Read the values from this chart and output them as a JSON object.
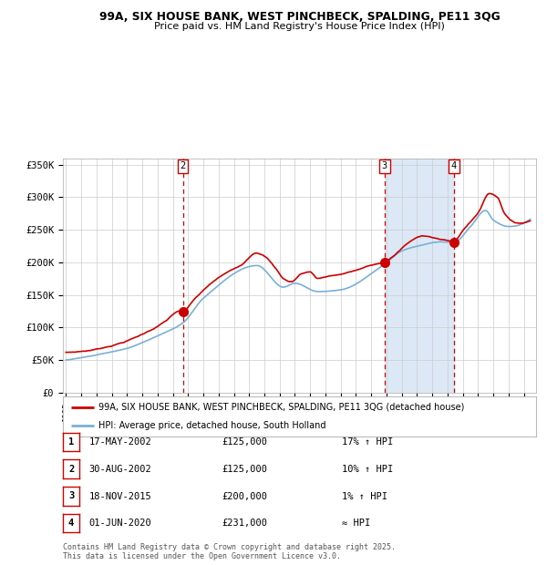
{
  "title1": "99A, SIX HOUSE BANK, WEST PINCHBECK, SPALDING, PE11 3QG",
  "title2": "Price paid vs. HM Land Registry's House Price Index (HPI)",
  "ylabel_ticks": [
    "£0",
    "£50K",
    "£100K",
    "£150K",
    "£200K",
    "£250K",
    "£300K",
    "£350K"
  ],
  "ytick_vals": [
    0,
    50000,
    100000,
    150000,
    200000,
    250000,
    300000,
    350000
  ],
  "ylim": [
    0,
    360000
  ],
  "xlim_start": 1994.8,
  "xlim_end": 2025.8,
  "sale_dates": [
    2002.37,
    2002.66,
    2015.88,
    2020.42
  ],
  "sale_prices": [
    125000,
    125000,
    200000,
    231000
  ],
  "sale_labels": [
    "1",
    "2",
    "3",
    "4"
  ],
  "vline_dates": [
    2002.66,
    2015.88,
    2020.42
  ],
  "vline_labels": [
    "2",
    "3",
    "4"
  ],
  "shade_start": 2015.88,
  "shade_end": 2020.42,
  "red_line_color": "#cc0000",
  "blue_line_color": "#7ab0d4",
  "dot_color": "#cc0000",
  "vline_color": "#cc0000",
  "shade_color": "#dce8f5",
  "grid_color": "#cccccc",
  "background_color": "#ffffff",
  "legend_line1": "99A, SIX HOUSE BANK, WEST PINCHBECK, SPALDING, PE11 3QG (detached house)",
  "legend_line2": "HPI: Average price, detached house, South Holland",
  "table_entries": [
    {
      "num": "1",
      "date": "17-MAY-2002",
      "price": "£125,000",
      "rel": "17% ↑ HPI"
    },
    {
      "num": "2",
      "date": "30-AUG-2002",
      "price": "£125,000",
      "rel": "10% ↑ HPI"
    },
    {
      "num": "3",
      "date": "18-NOV-2015",
      "price": "£200,000",
      "rel": "1% ↑ HPI"
    },
    {
      "num": "4",
      "date": "01-JUN-2020",
      "price": "£231,000",
      "rel": "≈ HPI"
    }
  ],
  "footer": "Contains HM Land Registry data © Crown copyright and database right 2025.\nThis data is licensed under the Open Government Licence v3.0."
}
